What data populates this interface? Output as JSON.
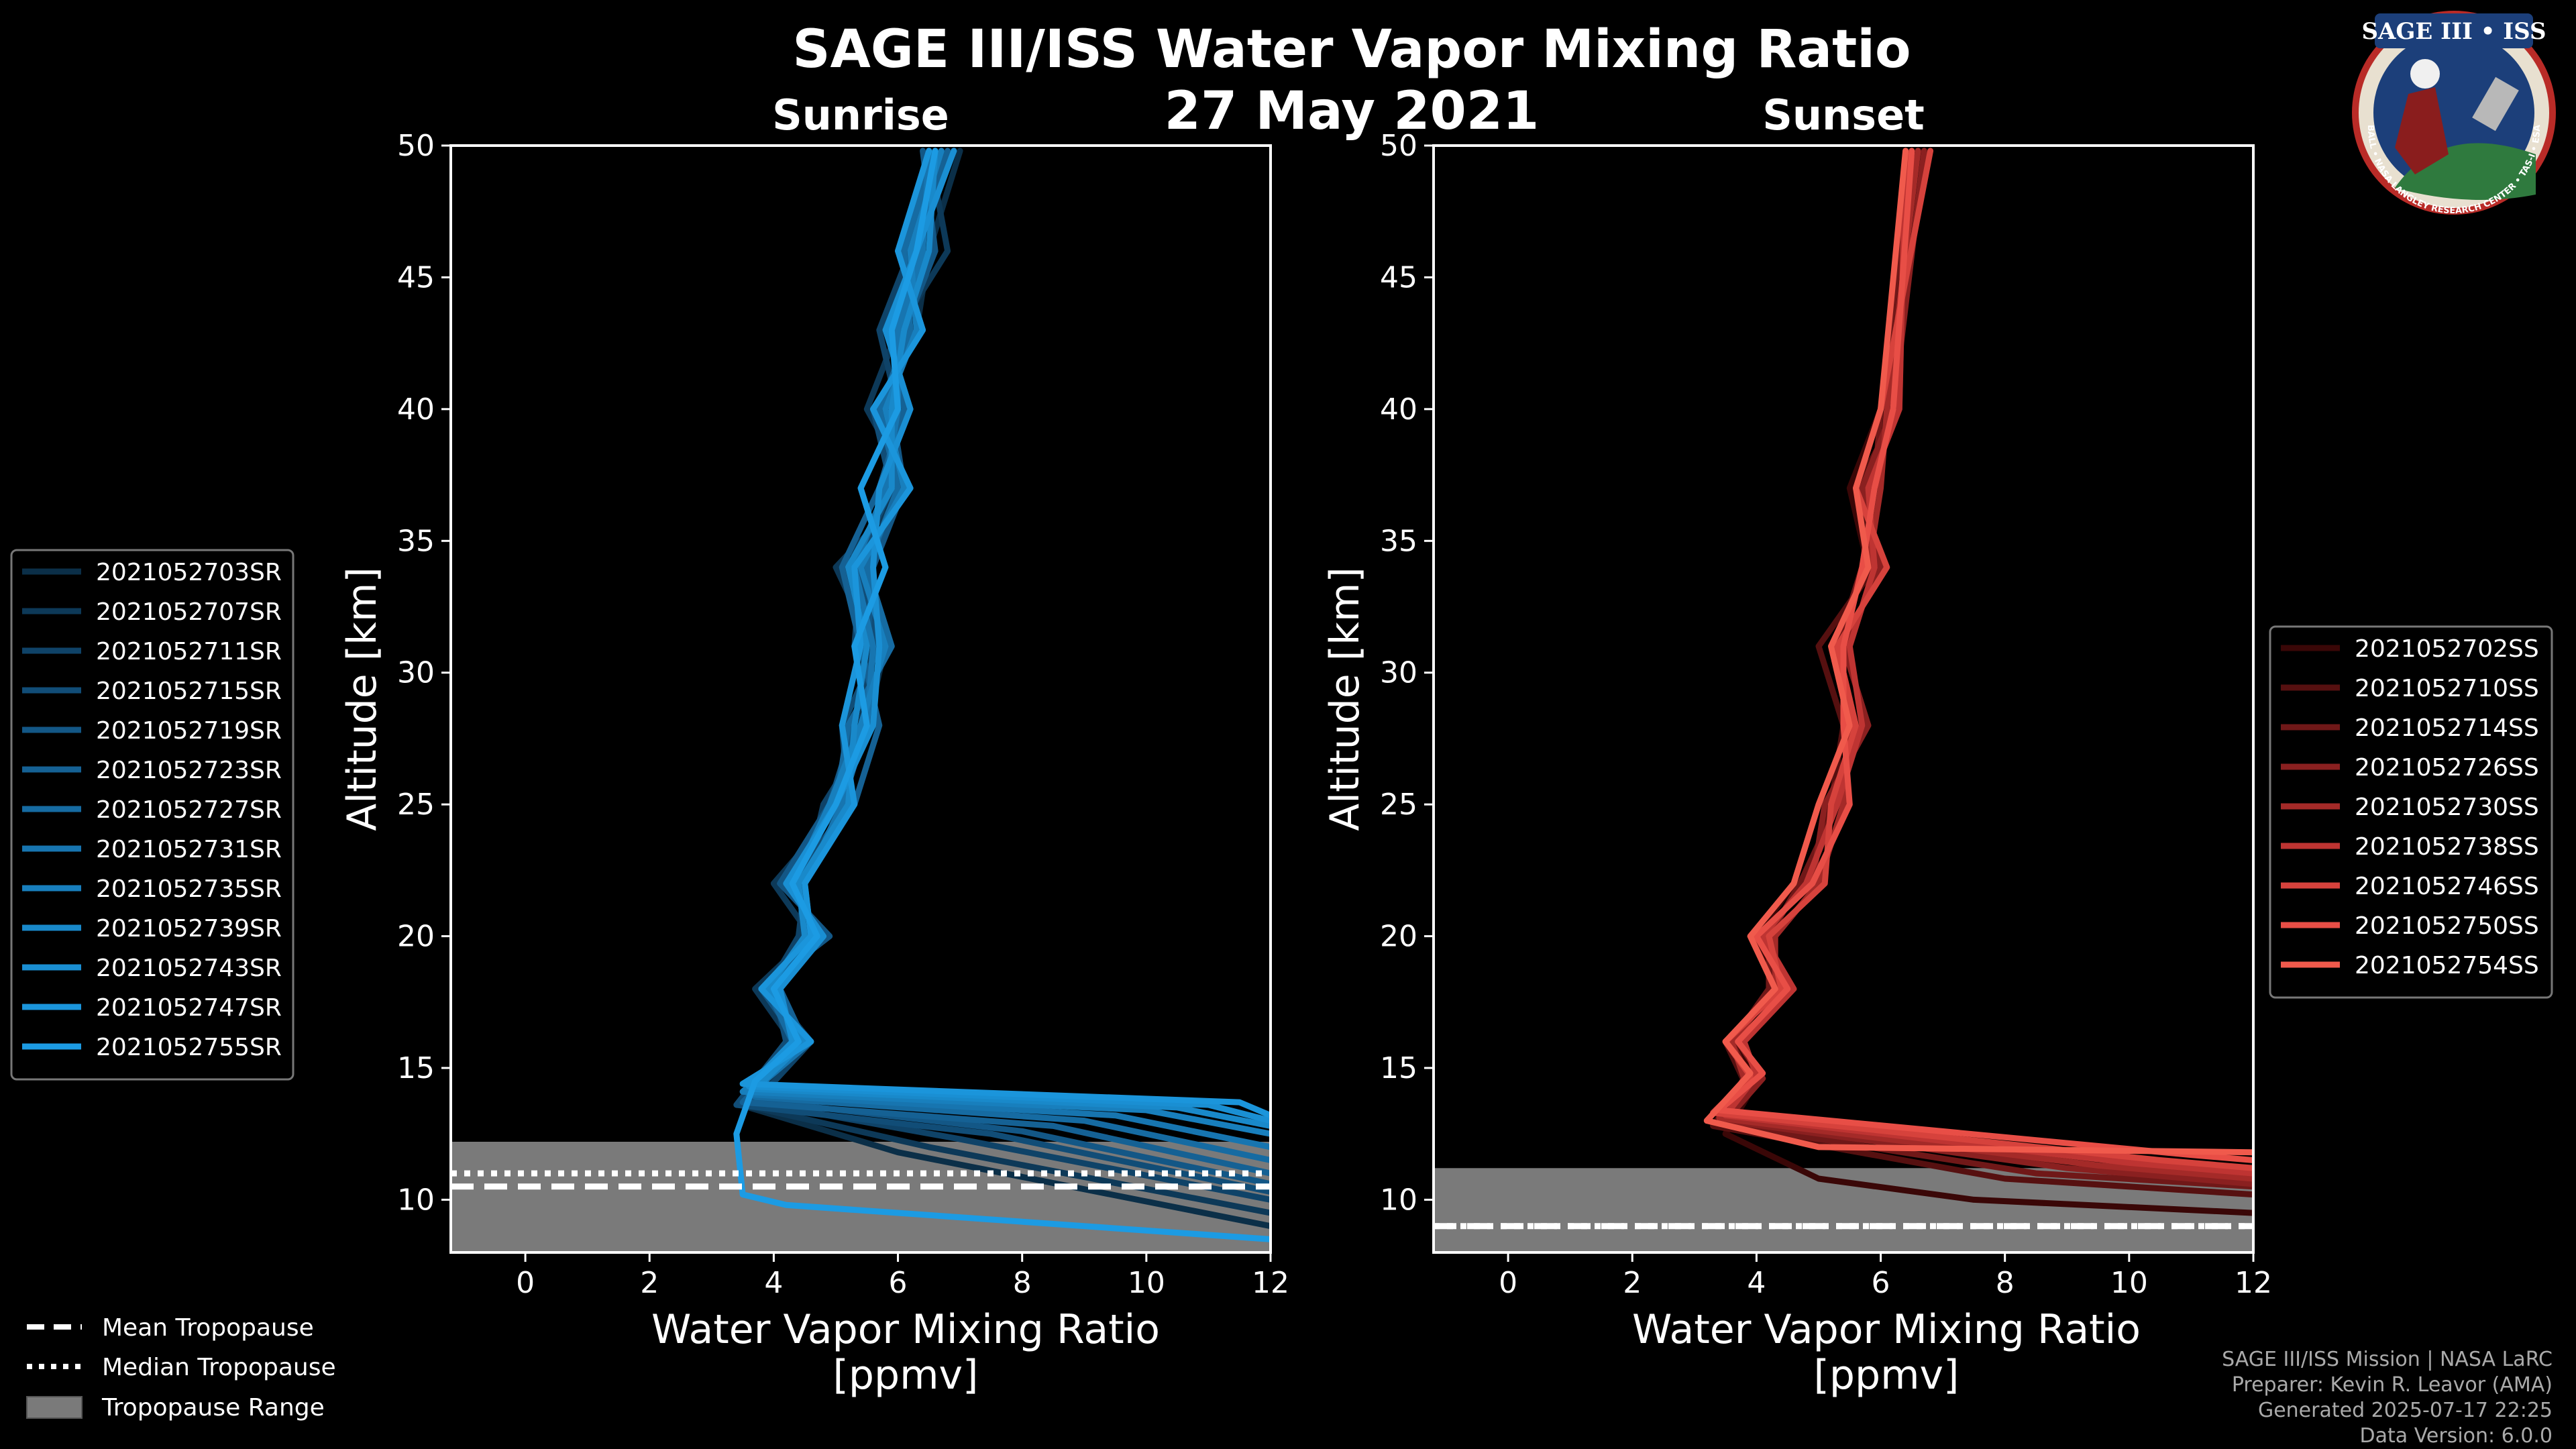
{
  "title": "SAGE III/ISS Water Vapor Mixing Ratio",
  "date": "27 May 2021",
  "logo": {
    "text": "SAGE III • ISS",
    "ring_text": "BALL • NASA LANGLEY RESEARCH CENTER • TAS-I • ESA"
  },
  "credits": [
    "SAGE III/ISS Mission | NASA LaRC",
    "Preparer: Kevin R. Leavor (AMA)",
    "Generated 2025-07-17 22:25",
    "Data Version: 6.0.0"
  ],
  "tropopause_legend": [
    "Mean Tropopause",
    "Median Tropopause",
    "Tropopause Range"
  ],
  "colors": {
    "background": "#000000",
    "sunrise": "#1a8fd6",
    "sunset": "#f05a4c",
    "tropopause_range": "#7a7a7a"
  },
  "chart_data": [
    {
      "type": "line",
      "title": "Sunrise",
      "xlabel": "Water Vapor Mixing Ratio\n[ppmv]",
      "ylabel": "Altitude [km]",
      "xlim": [
        -1.2,
        12
      ],
      "ylim": [
        8,
        50
      ],
      "xticks": [
        0,
        2,
        4,
        6,
        8,
        10,
        12
      ],
      "yticks": [
        10,
        15,
        20,
        25,
        30,
        35,
        40,
        45,
        50
      ],
      "tropopause": {
        "mean": 10.5,
        "median": 11.0,
        "range": [
          8.0,
          12.2
        ]
      },
      "legend_position": "outside-left",
      "series": [
        {
          "name": "2021052703SR",
          "color": "#0b2f48",
          "x": [
            12,
            6.0,
            3.6,
            4.5,
            3.8,
            4.8,
            4.2,
            5.0,
            5.5,
            5.8,
            5.2,
            6.0,
            5.8,
            6.3,
            6.5,
            7.0
          ],
          "y": [
            9.0,
            11.8,
            13.5,
            16,
            18,
            20,
            22,
            25,
            28,
            31,
            34,
            37,
            40,
            43,
            46,
            49.8
          ]
        },
        {
          "name": "2021052707SR",
          "color": "#0d3958",
          "x": [
            12,
            6.5,
            3.5,
            4.3,
            3.7,
            4.6,
            4.0,
            5.1,
            5.4,
            5.6,
            5.0,
            6.2,
            5.5,
            6.0,
            6.8,
            6.5
          ],
          "y": [
            9.5,
            12.0,
            13.6,
            16,
            18,
            20,
            22,
            25,
            28,
            31,
            34,
            37,
            40,
            43,
            46,
            49.8
          ]
        },
        {
          "name": "2021052711SR",
          "color": "#0f4368",
          "x": [
            12,
            7.0,
            3.7,
            4.6,
            3.9,
            4.4,
            4.5,
            4.8,
            5.6,
            5.3,
            5.4,
            5.8,
            6.0,
            5.7,
            6.2,
            6.9
          ],
          "y": [
            10.0,
            12.3,
            13.7,
            16,
            18,
            20,
            22,
            25,
            28,
            31,
            34,
            37,
            40,
            43,
            46,
            49.8
          ]
        },
        {
          "name": "2021052715SR",
          "color": "#114d77",
          "x": [
            12,
            7.5,
            3.4,
            4.2,
            4.0,
            4.7,
            4.3,
            5.2,
            5.1,
            5.7,
            5.3,
            5.9,
            5.6,
            6.4,
            6.0,
            6.7
          ],
          "y": [
            10.3,
            12.5,
            13.6,
            16,
            18,
            20,
            22,
            25,
            28,
            31,
            34,
            37,
            40,
            43,
            46,
            49.8
          ]
        },
        {
          "name": "2021052719SR",
          "color": "#135786",
          "x": [
            12,
            8.0,
            3.6,
            4.4,
            3.8,
            4.9,
            4.1,
            4.9,
            5.3,
            5.5,
            5.6,
            6.1,
            5.9,
            6.1,
            6.6,
            6.4
          ],
          "y": [
            10.6,
            12.6,
            13.8,
            16,
            18,
            20,
            22,
            25,
            28,
            31,
            34,
            37,
            40,
            43,
            46,
            49.8
          ]
        },
        {
          "name": "2021052723SR",
          "color": "#156194",
          "x": [
            12,
            8.5,
            3.5,
            4.5,
            4.1,
            4.5,
            4.4,
            5.3,
            5.7,
            5.4,
            5.1,
            5.7,
            6.1,
            5.9,
            6.3,
            6.8
          ],
          "y": [
            11.0,
            12.8,
            13.7,
            16,
            18,
            20,
            22,
            25,
            28,
            31,
            34,
            37,
            40,
            43,
            46,
            49.8
          ]
        },
        {
          "name": "2021052727SR",
          "color": "#166ba2",
          "x": [
            12,
            9.0,
            3.7,
            4.3,
            3.9,
            4.8,
            4.2,
            5.0,
            5.2,
            5.9,
            5.5,
            6.0,
            5.7,
            6.2,
            6.1,
            6.6
          ],
          "y": [
            11.5,
            13.0,
            13.9,
            16,
            18,
            20,
            22,
            25,
            28,
            31,
            34,
            37,
            40,
            43,
            46,
            49.8
          ]
        },
        {
          "name": "2021052731SR",
          "color": "#1775b0",
          "x": [
            12,
            9.5,
            3.6,
            4.6,
            3.8,
            4.6,
            4.5,
            5.1,
            5.5,
            5.6,
            5.3,
            5.8,
            6.0,
            6.0,
            6.4,
            6.5
          ],
          "y": [
            12.0,
            13.2,
            14.0,
            16,
            18,
            20,
            22,
            25,
            28,
            31,
            34,
            37,
            40,
            43,
            46,
            49.8
          ]
        },
        {
          "name": "2021052735SR",
          "color": "#187fbd",
          "x": [
            12,
            10.0,
            3.5,
            4.4,
            4.0,
            4.7,
            4.3,
            4.9,
            5.4,
            5.8,
            5.4,
            6.1,
            5.8,
            6.3,
            6.2,
            6.7
          ],
          "y": [
            12.5,
            13.4,
            14.1,
            16,
            18,
            20,
            22,
            25,
            28,
            31,
            34,
            37,
            40,
            43,
            46,
            49.8
          ]
        },
        {
          "name": "2021052739SR",
          "color": "#1989ca",
          "x": [
            12,
            10.5,
            3.7,
            4.5,
            3.9,
            4.5,
            4.4,
            5.2,
            5.3,
            5.5,
            5.2,
            5.9,
            5.9,
            6.1,
            6.5,
            6.6
          ],
          "y": [
            12.8,
            13.5,
            14.2,
            16,
            18,
            20,
            22,
            25,
            28,
            31,
            34,
            37,
            40,
            43,
            46,
            49.8
          ]
        },
        {
          "name": "2021052743SR",
          "color": "#1a8fd3",
          "x": [
            12,
            11.0,
            3.6,
            4.3,
            4.1,
            4.8,
            4.2,
            5.0,
            5.6,
            5.7,
            5.6,
            5.7,
            6.2,
            5.8,
            6.3,
            6.9
          ],
          "y": [
            13.0,
            13.6,
            14.3,
            16,
            18,
            20,
            22,
            25,
            28,
            31,
            34,
            37,
            40,
            43,
            46,
            49.8
          ]
        },
        {
          "name": "2021052747SR",
          "color": "#1b95db",
          "x": [
            12,
            11.5,
            3.5,
            4.6,
            3.8,
            4.6,
            4.5,
            5.3,
            5.1,
            5.4,
            5.3,
            6.2,
            5.6,
            6.4,
            6.0,
            6.5
          ],
          "y": [
            13.2,
            13.7,
            14.4,
            16,
            18,
            20,
            22,
            25,
            28,
            31,
            34,
            37,
            40,
            43,
            46,
            49.8
          ]
        },
        {
          "name": "2021052755SR",
          "color": "#1c9be3",
          "x": [
            12,
            4.2,
            3.5,
            3.4,
            3.7,
            4.4,
            4.0,
            4.7,
            4.3,
            5.0,
            5.5,
            5.3,
            5.8,
            5.4,
            6.0,
            5.9,
            6.3,
            6.6
          ],
          "y": [
            8.5,
            9.8,
            10.2,
            12.5,
            14.5,
            16,
            18,
            20,
            22,
            25,
            28,
            31,
            34,
            37,
            40,
            43,
            46,
            49.8
          ]
        }
      ]
    },
    {
      "type": "line",
      "title": "Sunset",
      "xlabel": "Water Vapor Mixing Ratio\n[ppmv]",
      "ylabel": "Altitude [km]",
      "xlim": [
        -1.2,
        12
      ],
      "ylim": [
        8,
        50
      ],
      "xticks": [
        0,
        2,
        4,
        6,
        8,
        10,
        12
      ],
      "yticks": [
        10,
        15,
        20,
        25,
        30,
        35,
        40,
        45,
        50
      ],
      "tropopause": {
        "mean": 9.0,
        "median": 9.0,
        "range": [
          8.0,
          11.2
        ]
      },
      "legend_position": "right",
      "series": [
        {
          "name": "2021052702SS",
          "color": "#3a0707",
          "x": [
            12,
            7.5,
            5.0,
            3.5,
            4.0,
            3.6,
            4.3,
            4.0,
            4.6,
            5.0,
            5.5,
            5.2,
            5.8,
            5.5,
            6.0,
            6.2,
            6.6
          ],
          "y": [
            9.5,
            10.0,
            10.8,
            12.5,
            14.5,
            16,
            18,
            20,
            22,
            25,
            28,
            31,
            34,
            37,
            40,
            43,
            49.8
          ]
        },
        {
          "name": "2021052710SS",
          "color": "#561010",
          "x": [
            12,
            8.0,
            3.3,
            3.8,
            3.5,
            4.4,
            4.1,
            4.8,
            5.2,
            5.4,
            5.0,
            5.9,
            5.6,
            6.3,
            6.4
          ],
          "y": [
            10.2,
            10.8,
            12.8,
            14.5,
            16,
            18,
            20,
            22,
            25,
            28,
            31,
            34,
            37,
            40,
            49.8
          ]
        },
        {
          "name": "2021052714SS",
          "color": "#701818",
          "x": [
            12,
            8.5,
            3.4,
            3.9,
            3.6,
            4.2,
            4.2,
            4.7,
            5.3,
            5.6,
            5.3,
            5.7,
            5.9,
            6.0,
            6.5
          ],
          "y": [
            10.5,
            11.0,
            12.9,
            14.5,
            16,
            18,
            20,
            22,
            25,
            28,
            31,
            34,
            37,
            40,
            49.8
          ]
        },
        {
          "name": "2021052726SS",
          "color": "#8a2020",
          "x": [
            12,
            9.0,
            3.5,
            4.1,
            3.7,
            4.5,
            4.0,
            4.9,
            5.1,
            5.8,
            5.4,
            6.0,
            5.7,
            6.2,
            6.7
          ],
          "y": [
            10.6,
            11.2,
            13.0,
            14.6,
            16,
            18,
            20,
            22,
            25,
            28,
            31,
            34,
            37,
            40,
            49.8
          ]
        },
        {
          "name": "2021052730SS",
          "color": "#a42a28",
          "x": [
            12,
            9.5,
            3.4,
            3.8,
            3.6,
            4.3,
            4.3,
            5.0,
            5.4,
            5.5,
            5.2,
            5.8,
            6.0,
            6.1,
            6.6
          ],
          "y": [
            10.8,
            11.3,
            13.1,
            14.6,
            16,
            18,
            20,
            22,
            25,
            28,
            31,
            34,
            37,
            40,
            49.8
          ]
        },
        {
          "name": "2021052738SS",
          "color": "#be3432",
          "x": [
            12,
            10.0,
            3.5,
            4.0,
            3.8,
            4.6,
            4.1,
            4.8,
            5.3,
            5.7,
            5.5,
            5.9,
            5.8,
            6.3,
            6.4
          ],
          "y": [
            11.0,
            11.4,
            13.2,
            14.7,
            16,
            18,
            20,
            22,
            25,
            28,
            31,
            34,
            37,
            40,
            49.8
          ]
        },
        {
          "name": "2021052746SS",
          "color": "#d6423c",
          "x": [
            12,
            10.5,
            3.3,
            3.9,
            3.5,
            4.4,
            4.2,
            5.1,
            5.2,
            5.6,
            5.3,
            6.1,
            5.6,
            6.0,
            6.8
          ],
          "y": [
            11.2,
            11.5,
            13.3,
            14.7,
            16,
            18,
            20,
            22,
            25,
            28,
            31,
            34,
            37,
            40,
            49.8
          ]
        },
        {
          "name": "2021052750SS",
          "color": "#e84e46",
          "x": [
            12,
            11.0,
            3.4,
            4.1,
            3.7,
            4.5,
            4.0,
            4.9,
            5.5,
            5.4,
            5.4,
            5.7,
            5.9,
            6.2,
            6.5
          ],
          "y": [
            11.5,
            11.7,
            13.4,
            14.8,
            16,
            18,
            20,
            22,
            25,
            28,
            31,
            34,
            37,
            40,
            49.8
          ]
        },
        {
          "name": "2021052754SS",
          "color": "#f05a4c",
          "x": [
            12,
            5.0,
            3.2,
            3.9,
            3.5,
            4.3,
            3.9,
            4.6,
            5.0,
            5.5,
            5.2,
            5.8,
            5.6,
            6.0,
            6.4
          ],
          "y": [
            11.8,
            12.0,
            13.0,
            14.8,
            16,
            18,
            20,
            22,
            25,
            28,
            31,
            34,
            37,
            40,
            49.8
          ]
        }
      ]
    }
  ]
}
